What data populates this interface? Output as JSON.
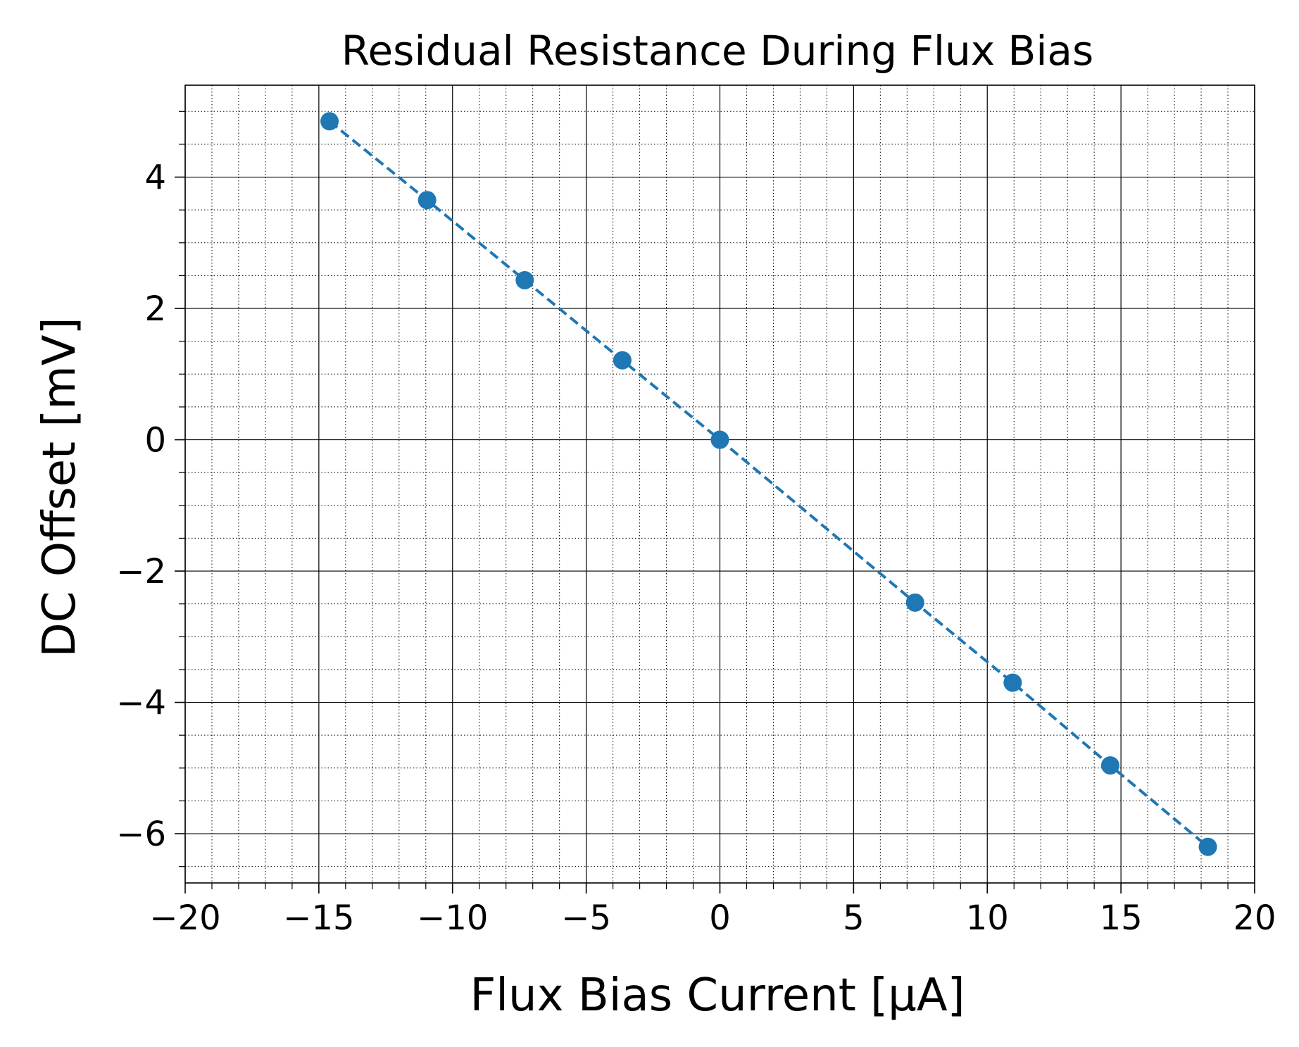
{
  "chart_data": {
    "type": "scatter",
    "title": "Residual Resistance During Flux Bias",
    "xlabel": "Flux Bias Current [μA]",
    "ylabel": "DC Offset [mV]",
    "xlim": [
      -20,
      20
    ],
    "ylim": [
      -6.75,
      5.4
    ],
    "xticks": [
      -20,
      -15,
      -10,
      -5,
      0,
      5,
      10,
      15,
      20
    ],
    "xtick_labels": [
      "−20",
      "−15",
      "−10",
      "−5",
      "0",
      "5",
      "10",
      "15",
      "20"
    ],
    "yticks": [
      -6,
      -4,
      -2,
      0,
      2,
      4
    ],
    "ytick_labels": [
      "−6",
      "−4",
      "−2",
      "0",
      "2",
      "4"
    ],
    "grid": {
      "major": "solid",
      "minor": "dotted"
    },
    "line_style": "dashed",
    "marker": "circle",
    "color": "#1f77b4",
    "series": [
      {
        "x": [
          -14.6,
          -10.95,
          -7.3,
          -3.65,
          0.0,
          7.3,
          10.95,
          14.6,
          18.25
        ],
        "y": [
          4.85,
          3.65,
          2.43,
          1.21,
          0.0,
          -2.48,
          -3.7,
          -4.96,
          -6.2
        ]
      }
    ]
  }
}
